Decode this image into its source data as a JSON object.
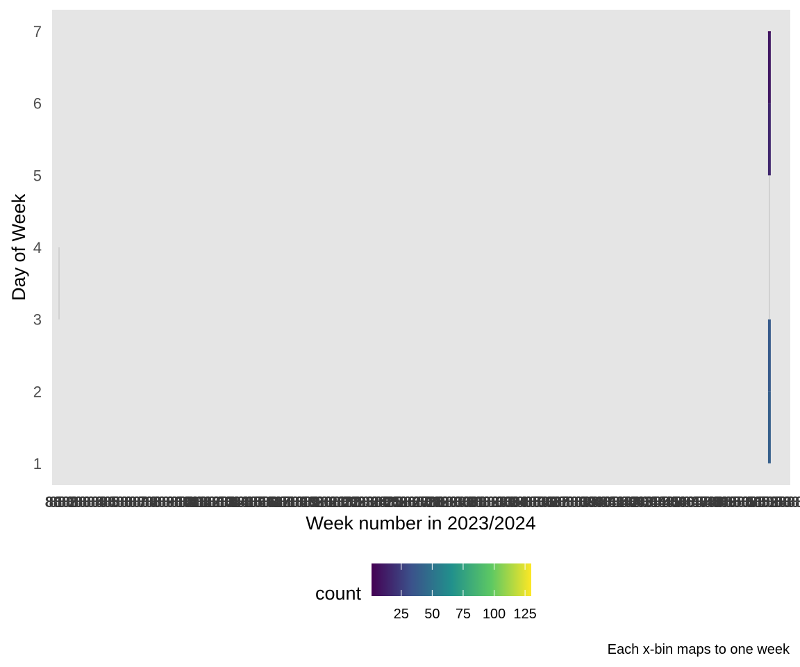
{
  "chart_data": {
    "type": "heatmap",
    "title": "",
    "xlabel": "Week number in 2023/2024",
    "ylabel": "Day of Week",
    "caption": "Each x-bin maps to one week",
    "y_ticks": [
      1,
      2,
      3,
      4,
      5,
      6,
      7
    ],
    "ylim": [
      0.7,
      7.3
    ],
    "xlim": [
      0.5,
      53.5
    ],
    "grid": true,
    "legend": {
      "title": "count",
      "placement": "bottom",
      "ticks": [
        25,
        50,
        75,
        100,
        125
      ],
      "range": [
        1,
        130
      ],
      "colormap": [
        "#440154",
        "#3b528b",
        "#21908c",
        "#5dc863",
        "#fde725"
      ]
    },
    "cells": [
      {
        "week": 1,
        "day": 3,
        "count": 1
      },
      {
        "week": 52,
        "day": 1,
        "count": 40
      },
      {
        "week": 52,
        "day": 2,
        "count": 38
      },
      {
        "week": 52,
        "day": 3,
        "count": 1
      },
      {
        "week": 52,
        "day": 4,
        "count": 1
      },
      {
        "week": 52,
        "day": 5,
        "count": 16
      },
      {
        "week": 52,
        "day": 6,
        "count": 10
      },
      {
        "week": 52,
        "day": 7,
        "count": 5
      }
    ]
  }
}
